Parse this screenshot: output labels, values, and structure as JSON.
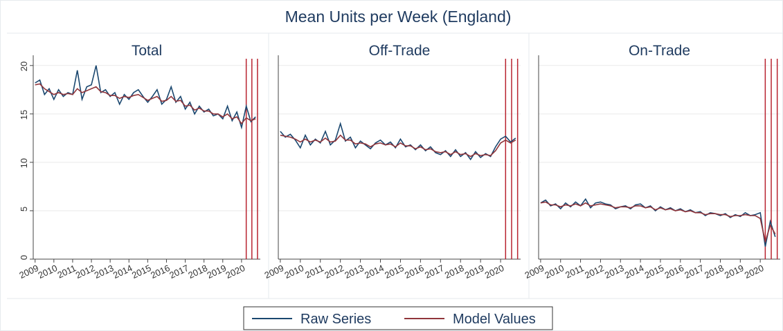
{
  "title": "Mean Units per Week (England)",
  "legend": "bottom",
  "chart_data": [
    {
      "type": "line",
      "title": "Total",
      "x": [
        2009,
        2009.25,
        2009.5,
        2009.75,
        2010,
        2010.25,
        2010.5,
        2010.75,
        2011,
        2011.25,
        2011.5,
        2011.75,
        2012,
        2012.25,
        2012.5,
        2012.75,
        2013,
        2013.25,
        2013.5,
        2013.75,
        2014,
        2014.25,
        2014.5,
        2014.75,
        2015,
        2015.25,
        2015.5,
        2015.75,
        2016,
        2016.25,
        2016.5,
        2016.75,
        2017,
        2017.25,
        2017.5,
        2017.75,
        2018,
        2018.25,
        2018.5,
        2018.75,
        2019,
        2019.25,
        2019.5,
        2019.75,
        2020,
        2020.25,
        2020.5,
        2020.75
      ],
      "series": [
        {
          "name": "Raw Series",
          "color": "#1a476f",
          "values": [
            18.2,
            18.5,
            17.0,
            17.6,
            16.5,
            17.5,
            16.8,
            17.2,
            17.0,
            19.5,
            16.5,
            17.8,
            18.0,
            20.0,
            17.2,
            17.5,
            16.8,
            17.2,
            16.0,
            17.0,
            16.5,
            17.2,
            17.5,
            16.8,
            16.2,
            16.8,
            17.5,
            16.0,
            16.5,
            17.8,
            16.2,
            16.8,
            15.5,
            16.2,
            15.0,
            15.8,
            15.2,
            15.5,
            14.8,
            15.0,
            14.5,
            15.8,
            14.3,
            15.2,
            13.6,
            15.8,
            14.2,
            14.7
          ]
        },
        {
          "name": "Model Values",
          "color": "#90353b",
          "values": [
            18.0,
            18.1,
            17.6,
            17.3,
            17.0,
            17.2,
            17.0,
            17.1,
            17.0,
            17.6,
            17.2,
            17.4,
            17.6,
            17.8,
            17.3,
            17.2,
            16.9,
            16.9,
            16.6,
            16.8,
            16.7,
            16.9,
            17.0,
            16.7,
            16.4,
            16.6,
            16.8,
            16.3,
            16.4,
            16.8,
            16.3,
            16.4,
            15.8,
            15.9,
            15.4,
            15.6,
            15.3,
            15.3,
            15.0,
            15.0,
            14.7,
            15.0,
            14.5,
            14.7,
            14.0,
            14.6,
            14.3,
            14.5
          ]
        }
      ],
      "xlim": [
        2008.9,
        2021.0
      ],
      "xticks": [
        2009,
        2010,
        2011,
        2012,
        2013,
        2014,
        2015,
        2016,
        2017,
        2018,
        2019,
        2020
      ],
      "ylim": [
        0,
        20.7
      ],
      "yticks": [
        0,
        5,
        10,
        15,
        20
      ],
      "grid": true,
      "vlines": [
        2020.25,
        2020.55,
        2020.85
      ],
      "vline_color": "#b8232f"
    },
    {
      "type": "line",
      "title": "Off-Trade",
      "x": [
        2009,
        2009.25,
        2009.5,
        2009.75,
        2010,
        2010.25,
        2010.5,
        2010.75,
        2011,
        2011.25,
        2011.5,
        2011.75,
        2012,
        2012.25,
        2012.5,
        2012.75,
        2013,
        2013.25,
        2013.5,
        2013.75,
        2014,
        2014.25,
        2014.5,
        2014.75,
        2015,
        2015.25,
        2015.5,
        2015.75,
        2016,
        2016.25,
        2016.5,
        2016.75,
        2017,
        2017.25,
        2017.5,
        2017.75,
        2018,
        2018.25,
        2018.5,
        2018.75,
        2019,
        2019.25,
        2019.5,
        2019.75,
        2020,
        2020.25,
        2020.5,
        2020.75
      ],
      "series": [
        {
          "name": "Raw Series",
          "color": "#1a476f",
          "values": [
            13.2,
            12.6,
            12.9,
            12.3,
            11.5,
            12.8,
            11.8,
            12.4,
            12.0,
            13.2,
            11.8,
            12.3,
            14.0,
            12.2,
            12.6,
            11.5,
            12.2,
            11.8,
            11.4,
            12.0,
            12.3,
            11.8,
            12.1,
            11.5,
            12.4,
            11.6,
            11.8,
            11.3,
            11.8,
            11.2,
            11.6,
            11.0,
            10.8,
            11.2,
            10.6,
            11.3,
            10.6,
            11.0,
            10.3,
            11.1,
            10.5,
            10.9,
            10.6,
            11.6,
            12.4,
            12.7,
            12.1,
            12.5
          ]
        },
        {
          "name": "Model Values",
          "color": "#90353b",
          "values": [
            12.8,
            12.7,
            12.6,
            12.4,
            12.1,
            12.4,
            12.1,
            12.3,
            12.1,
            12.5,
            12.1,
            12.2,
            12.8,
            12.3,
            12.3,
            11.9,
            12.0,
            11.9,
            11.6,
            11.9,
            12.0,
            11.8,
            11.9,
            11.6,
            12.0,
            11.7,
            11.7,
            11.4,
            11.6,
            11.3,
            11.4,
            11.1,
            11.0,
            11.1,
            10.8,
            11.1,
            10.8,
            10.9,
            10.6,
            10.9,
            10.7,
            10.8,
            10.7,
            11.2,
            12.0,
            12.3,
            12.0,
            12.3
          ]
        }
      ],
      "xlim": [
        2008.9,
        2021.0
      ],
      "xticks": [
        2009,
        2010,
        2011,
        2012,
        2013,
        2014,
        2015,
        2016,
        2017,
        2018,
        2019,
        2020
      ],
      "ylim": [
        0,
        20.7
      ],
      "yticks": [
        0,
        5,
        10,
        15,
        20
      ],
      "grid": true,
      "vlines": [
        2020.25,
        2020.55,
        2020.85
      ],
      "vline_color": "#b8232f"
    },
    {
      "type": "line",
      "title": "On-Trade",
      "x": [
        2009,
        2009.25,
        2009.5,
        2009.75,
        2010,
        2010.25,
        2010.5,
        2010.75,
        2011,
        2011.25,
        2011.5,
        2011.75,
        2012,
        2012.25,
        2012.5,
        2012.75,
        2013,
        2013.25,
        2013.5,
        2013.75,
        2014,
        2014.25,
        2014.5,
        2014.75,
        2015,
        2015.25,
        2015.5,
        2015.75,
        2016,
        2016.25,
        2016.5,
        2016.75,
        2017,
        2017.25,
        2017.5,
        2017.75,
        2018,
        2018.25,
        2018.5,
        2018.75,
        2019,
        2019.25,
        2019.5,
        2019.75,
        2020,
        2020.25,
        2020.5,
        2020.75
      ],
      "series": [
        {
          "name": "Raw Series",
          "color": "#1a476f",
          "values": [
            5.8,
            6.1,
            5.5,
            5.7,
            5.2,
            5.8,
            5.4,
            5.9,
            5.5,
            6.2,
            5.3,
            5.8,
            5.9,
            5.7,
            5.6,
            5.2,
            5.4,
            5.5,
            5.2,
            5.6,
            5.7,
            5.3,
            5.5,
            5.0,
            5.4,
            5.1,
            5.3,
            5.0,
            5.2,
            4.9,
            5.1,
            4.8,
            4.9,
            4.5,
            4.8,
            4.7,
            4.5,
            4.7,
            4.3,
            4.6,
            4.4,
            4.8,
            4.5,
            4.6,
            4.8,
            1.3,
            3.9,
            2.3
          ]
        },
        {
          "name": "Model Values",
          "color": "#90353b",
          "values": [
            5.8,
            5.9,
            5.6,
            5.6,
            5.4,
            5.6,
            5.5,
            5.7,
            5.5,
            5.8,
            5.5,
            5.6,
            5.7,
            5.6,
            5.5,
            5.3,
            5.4,
            5.4,
            5.3,
            5.5,
            5.5,
            5.3,
            5.4,
            5.1,
            5.3,
            5.1,
            5.2,
            5.0,
            5.1,
            4.9,
            5.0,
            4.8,
            4.8,
            4.6,
            4.7,
            4.7,
            4.6,
            4.6,
            4.4,
            4.5,
            4.5,
            4.6,
            4.5,
            4.5,
            4.2,
            1.8,
            3.5,
            2.6
          ]
        }
      ],
      "xlim": [
        2008.9,
        2021.0
      ],
      "xticks": [
        2009,
        2010,
        2011,
        2012,
        2013,
        2014,
        2015,
        2016,
        2017,
        2018,
        2019,
        2020
      ],
      "ylim": [
        0,
        20.7
      ],
      "yticks": [
        0,
        5,
        10,
        15,
        20
      ],
      "grid": true,
      "vlines": [
        2020.25,
        2020.55,
        2020.85
      ],
      "vline_color": "#b8232f"
    }
  ]
}
